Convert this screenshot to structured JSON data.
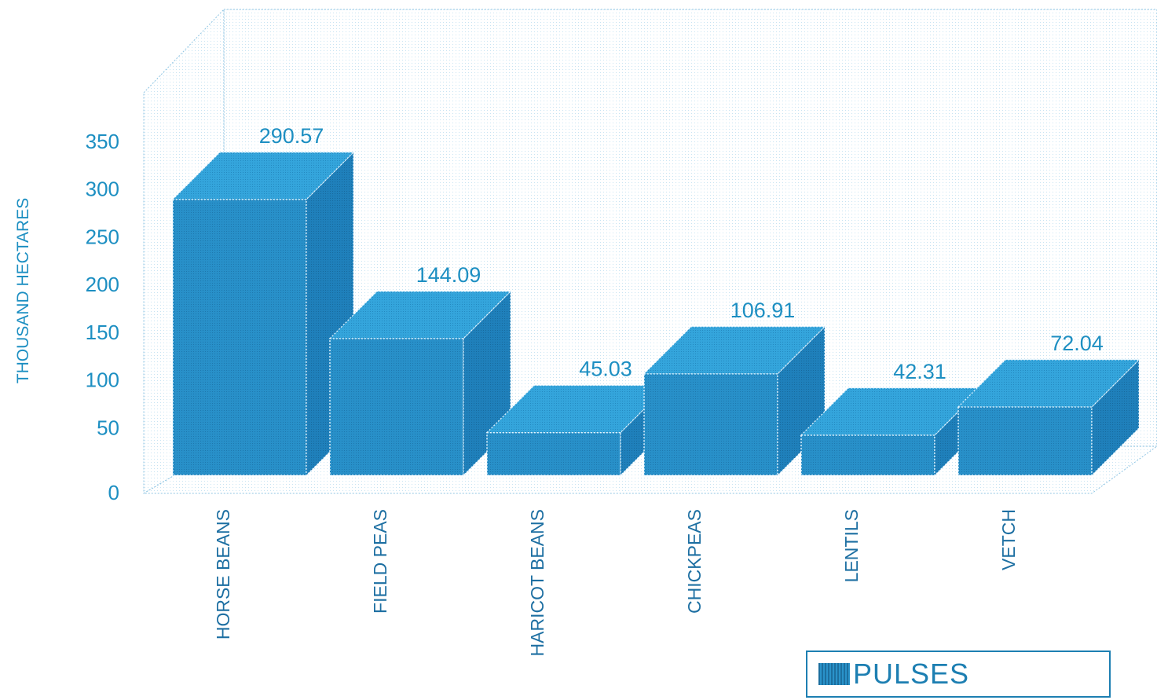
{
  "chart_data": {
    "type": "bar",
    "categories": [
      "HORSE BEANS",
      "FIELD PEAS",
      "HARICOT BEANS",
      "CHICKPEAS",
      "LENTILS",
      "VETCH"
    ],
    "series": [
      {
        "name": "PULSES",
        "values": [
          290.57,
          144.09,
          45.03,
          106.91,
          42.31,
          72.04
        ]
      }
    ],
    "value_labels": [
      "290.57",
      "144.09",
      "45.03",
      "106.91",
      "42.31",
      "72.04"
    ],
    "ylabel": "THOUSAND HECTARES",
    "ylim": [
      0,
      350
    ],
    "yticks": [
      "0",
      "50",
      "100",
      "150",
      "200",
      "250",
      "300",
      "350"
    ],
    "grid": false,
    "legend_position": "bottom-right",
    "style": "3d-bar",
    "colors": {
      "bar_front": "#2a8fc8",
      "bar_top": "#35a6db",
      "bar_side": "#1f7fb8",
      "text": "#1d8fc2"
    }
  }
}
